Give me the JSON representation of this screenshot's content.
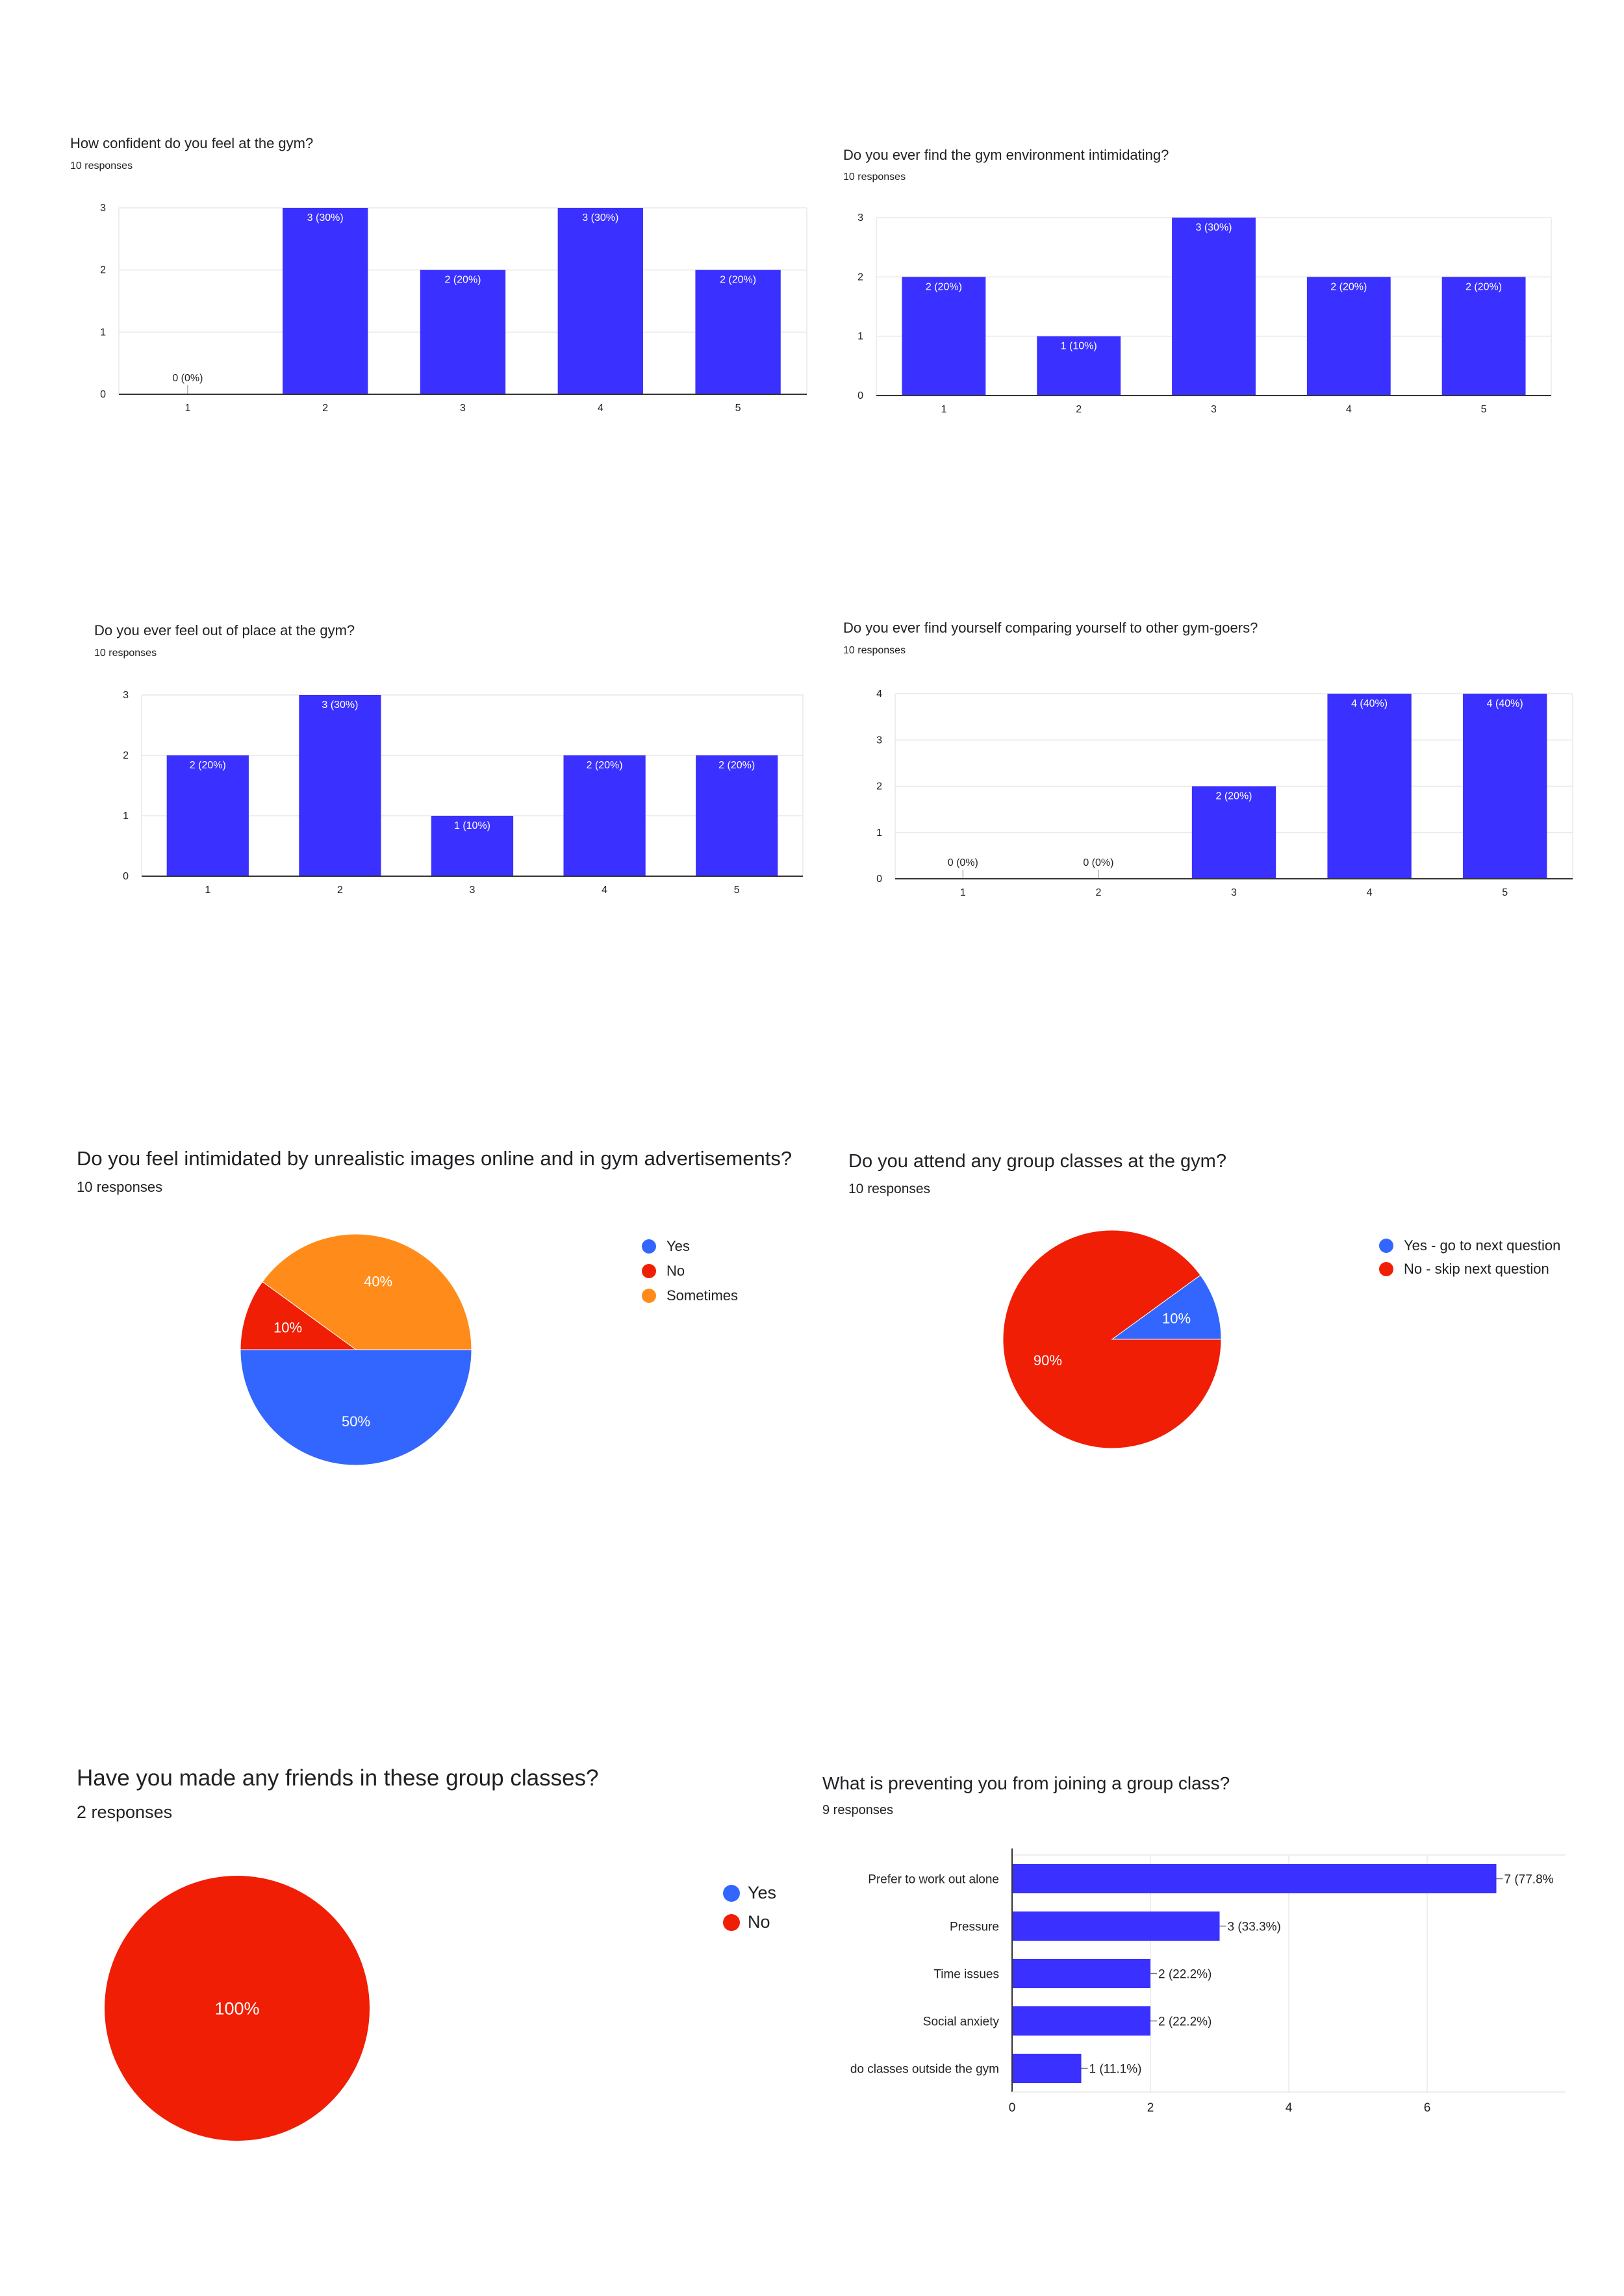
{
  "colors": {
    "bar": "#3a30ff",
    "yes": "#3366ff",
    "no": "#f01e05",
    "sometimes": "#ff8c1a",
    "axis": "#333333",
    "grid": "#e8e8e8",
    "tick_text": "#222222",
    "bar_label_inside": "#ffffff",
    "bar_label_outside": "#222222"
  },
  "charts": [
    {
      "id": "confidence",
      "title": "How confident do you feel at the gym?",
      "subtitle": "10 responses",
      "chart_data": {
        "type": "bar",
        "categories": [
          "1",
          "2",
          "3",
          "4",
          "5"
        ],
        "values": [
          0,
          3,
          2,
          3,
          2
        ],
        "labels": [
          "0 (0%)",
          "3 (30%)",
          "2 (20%)",
          "3 (30%)",
          "2 (20%)"
        ],
        "yticks": [
          "0",
          "1",
          "2",
          "3"
        ],
        "ylim": [
          0,
          3
        ]
      }
    },
    {
      "id": "intimidating",
      "title": "Do you ever find the gym environment intimidating?",
      "subtitle": "10 responses",
      "chart_data": {
        "type": "bar",
        "categories": [
          "1",
          "2",
          "3",
          "4",
          "5"
        ],
        "values": [
          2,
          1,
          3,
          2,
          2
        ],
        "labels": [
          "2 (20%)",
          "1 (10%)",
          "3 (30%)",
          "2 (20%)",
          "2 (20%)"
        ],
        "yticks": [
          "0",
          "1",
          "2",
          "3"
        ],
        "ylim": [
          0,
          3
        ]
      }
    },
    {
      "id": "out-of-place",
      "title": "Do you ever feel out of place at the gym?",
      "subtitle": "10 responses",
      "chart_data": {
        "type": "bar",
        "categories": [
          "1",
          "2",
          "3",
          "4",
          "5"
        ],
        "values": [
          2,
          3,
          1,
          2,
          2
        ],
        "labels": [
          "2 (20%)",
          "3 (30%)",
          "1 (10%)",
          "2 (20%)",
          "2 (20%)"
        ],
        "yticks": [
          "0",
          "1",
          "2",
          "3"
        ],
        "ylim": [
          0,
          3
        ]
      }
    },
    {
      "id": "comparing",
      "title": "Do you ever find yourself comparing yourself to other gym-goers?",
      "subtitle": "10 responses",
      "chart_data": {
        "type": "bar",
        "categories": [
          "1",
          "2",
          "3",
          "4",
          "5"
        ],
        "values": [
          0,
          0,
          2,
          4,
          4
        ],
        "labels": [
          "0 (0%)",
          "0 (0%)",
          "2 (20%)",
          "4 (40%)",
          "4 (40%)"
        ],
        "yticks": [
          "0",
          "1",
          "2",
          "3",
          "4"
        ],
        "ylim": [
          0,
          4
        ]
      }
    },
    {
      "id": "unrealistic-images",
      "title": "Do you feel intimidated by unrealistic images online and in gym advertisements?",
      "subtitle": "10 responses",
      "chart_data": {
        "type": "pie",
        "slices": [
          {
            "label": "Yes",
            "value": 50,
            "text": "50%",
            "color": "#3366ff"
          },
          {
            "label": "No",
            "value": 10,
            "text": "10%",
            "color": "#f01e05"
          },
          {
            "label": "Sometimes",
            "value": 40,
            "text": "40%",
            "color": "#ff8c1a"
          }
        ]
      }
    },
    {
      "id": "group-classes",
      "title": "Do you attend any group classes at the gym?",
      "subtitle": "10 responses",
      "chart_data": {
        "type": "pie",
        "slices": [
          {
            "label": "Yes - go to next question",
            "value": 10,
            "text": "10%",
            "color": "#3366ff"
          },
          {
            "label": "No - skip next question",
            "value": 90,
            "text": "90%",
            "color": "#f01e05"
          }
        ]
      }
    },
    {
      "id": "friends",
      "title": "Have you made any friends in these group classes?",
      "subtitle": "2 responses",
      "chart_data": {
        "type": "pie",
        "slices": [
          {
            "label": "Yes",
            "value": 0,
            "text": "",
            "color": "#3366ff"
          },
          {
            "label": "No",
            "value": 100,
            "text": "100%",
            "color": "#f01e05"
          }
        ]
      }
    },
    {
      "id": "preventing",
      "title": "What is preventing you from joining a group class?",
      "subtitle": "9 responses",
      "chart_data": {
        "type": "bar",
        "orientation": "horizontal",
        "categories": [
          "Prefer to work out alone",
          "Pressure",
          "Time issues",
          "Social anxiety",
          "do classes outside the gym"
        ],
        "values": [
          7,
          3,
          2,
          2,
          1
        ],
        "labels": [
          "7 (77.8%",
          "3 (33.3%)",
          "2 (22.2%)",
          "2 (22.2%)",
          "1 (11.1%)"
        ],
        "xticks": [
          "0",
          "2",
          "4",
          "6"
        ],
        "xlim": [
          0,
          8
        ]
      }
    }
  ]
}
